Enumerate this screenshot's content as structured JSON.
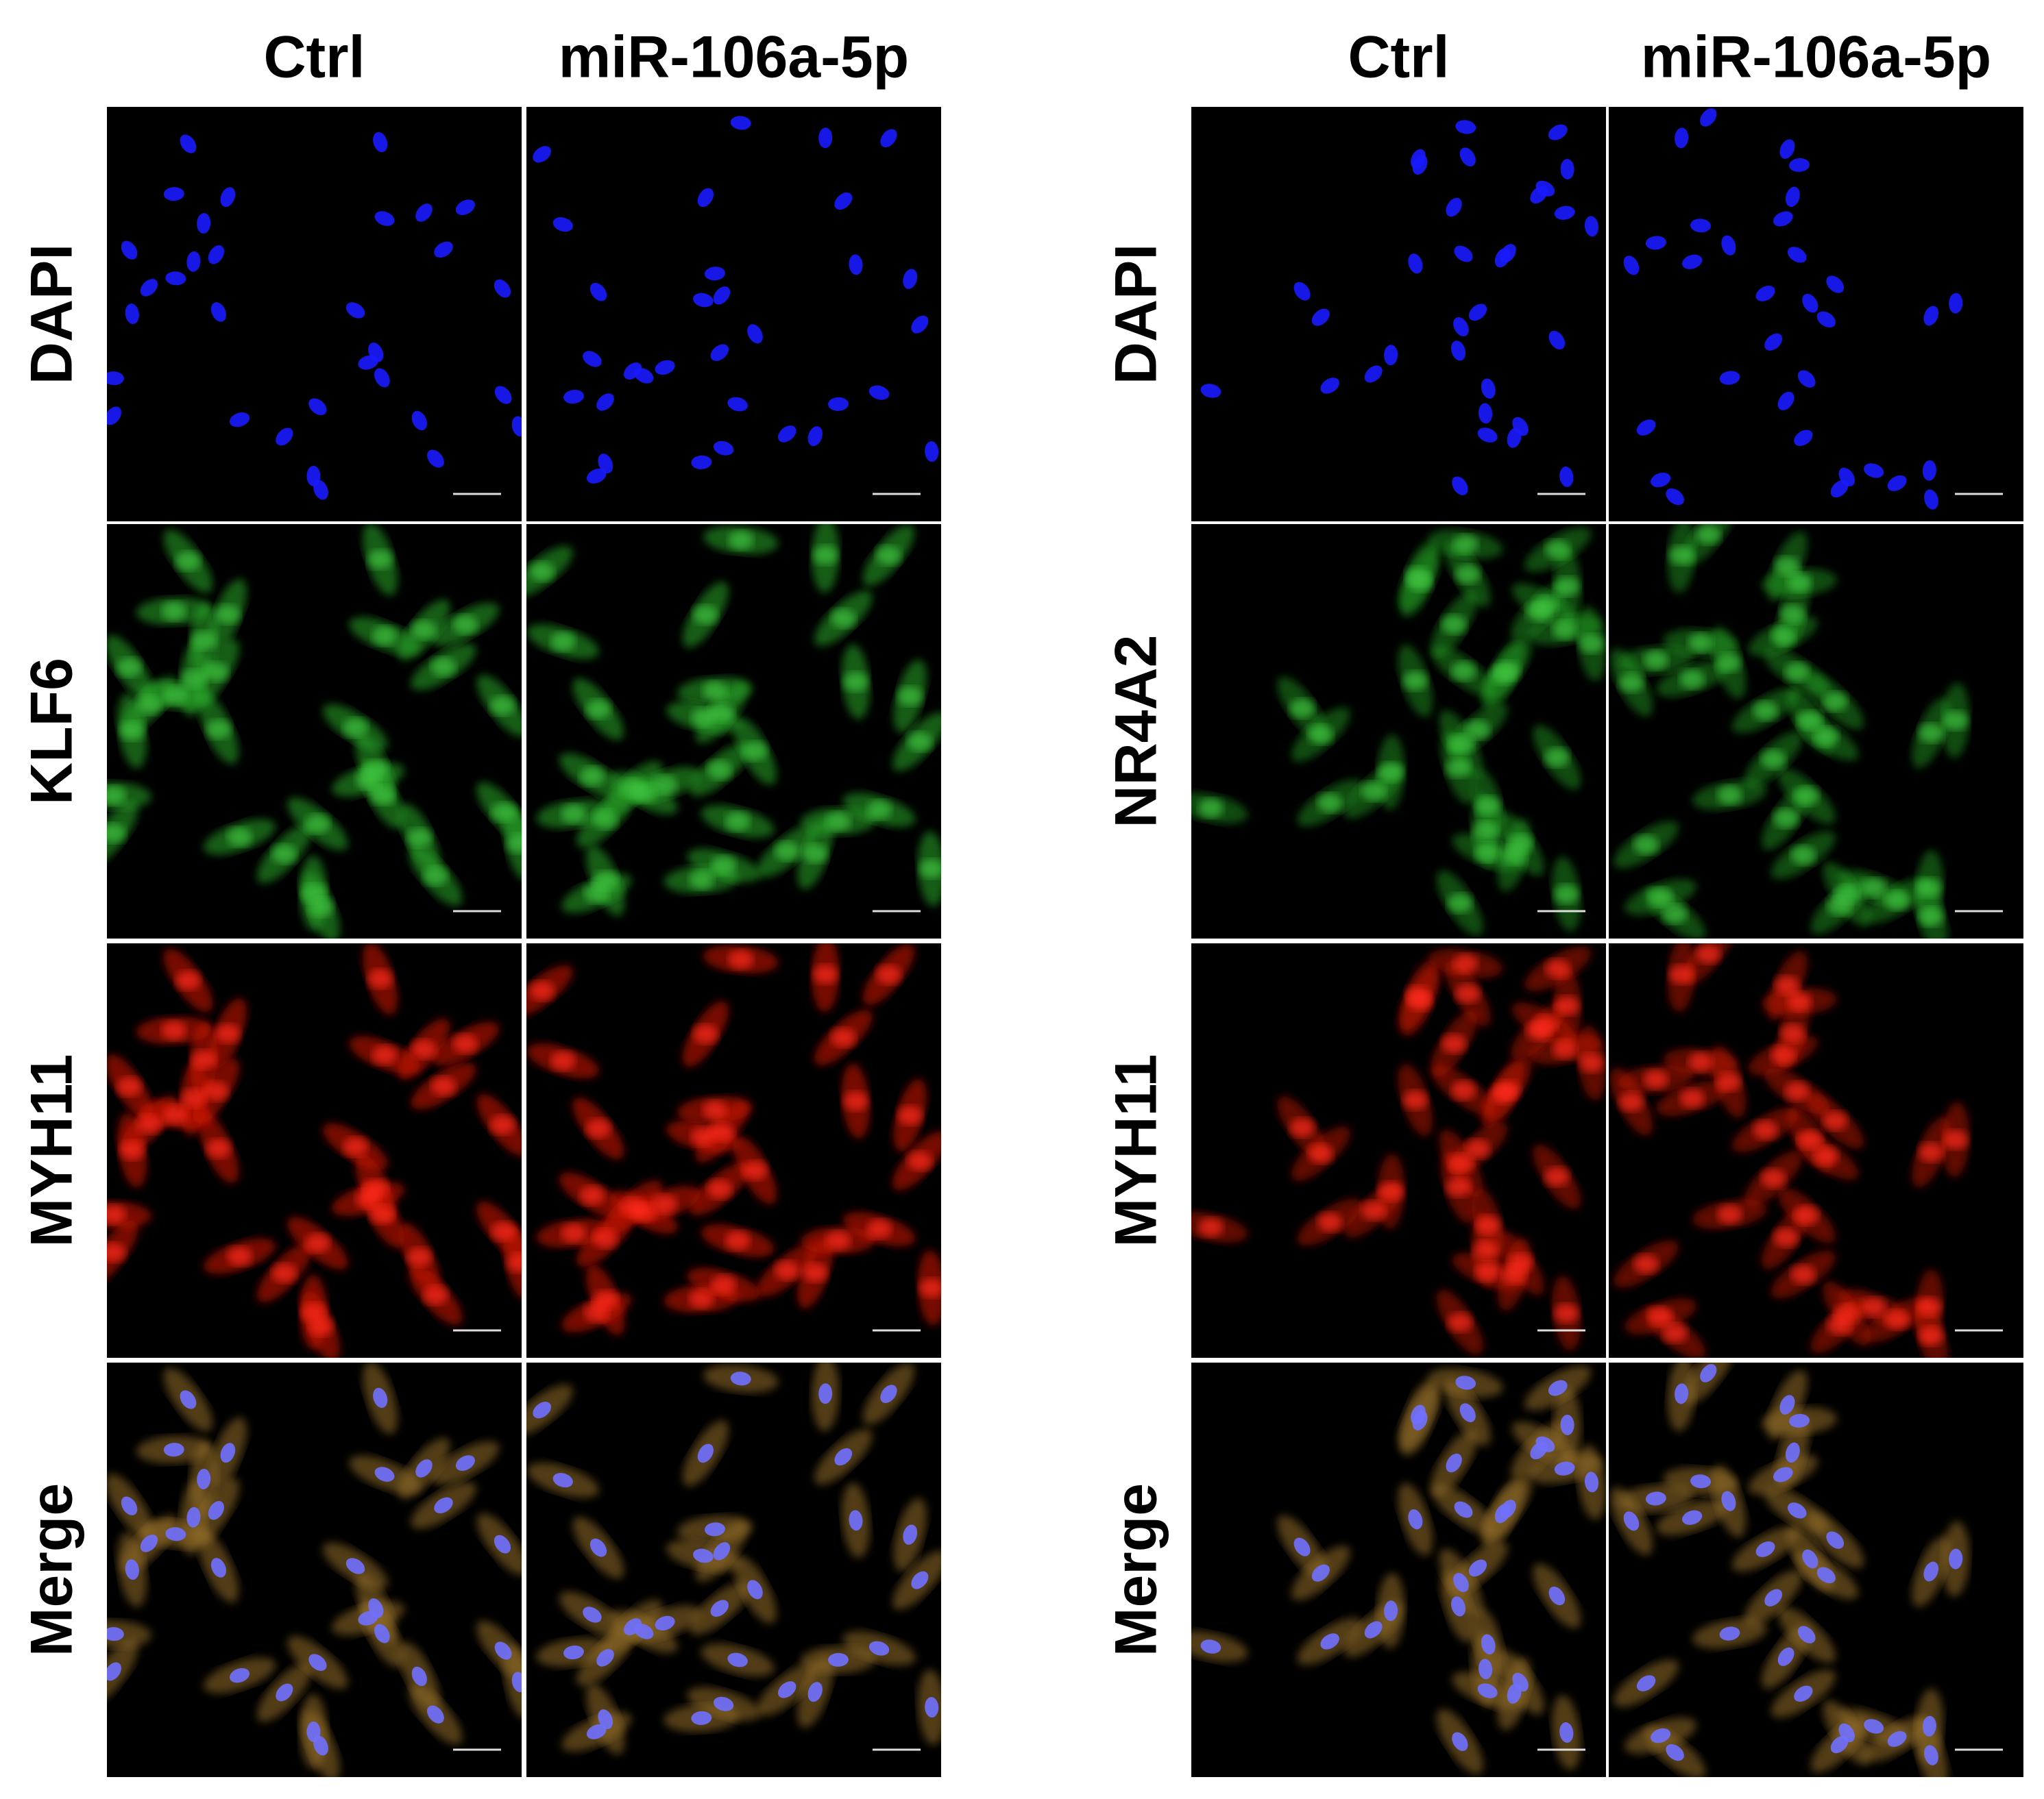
{
  "panels": [
    {
      "columns": [
        "Ctrl",
        "miR-106a-5p"
      ],
      "rows": [
        "DAPI",
        "KLF6",
        "MYH11",
        "Merge"
      ]
    },
    {
      "columns": [
        "Ctrl",
        "miR-106a-5p"
      ],
      "rows": [
        "DAPI",
        "NR4A2",
        "MYH11",
        "Merge"
      ]
    }
  ]
}
